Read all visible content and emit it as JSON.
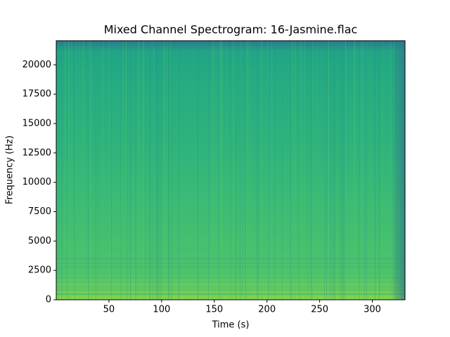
{
  "chart_data": {
    "type": "spectrogram",
    "title": "Mixed Channel Spectrogram: 16-Jasmine.flac",
    "x_label": "Time (s)",
    "y_label": "Frequency (Hz)",
    "xlim": [
      0,
      331
    ],
    "xticks": [
      50,
      100,
      150,
      200,
      250,
      300
    ],
    "ylim": [
      0,
      22050
    ],
    "yticks": [
      0,
      2500,
      5000,
      7500,
      10000,
      12500,
      15000,
      17500,
      20000
    ]
  }
}
